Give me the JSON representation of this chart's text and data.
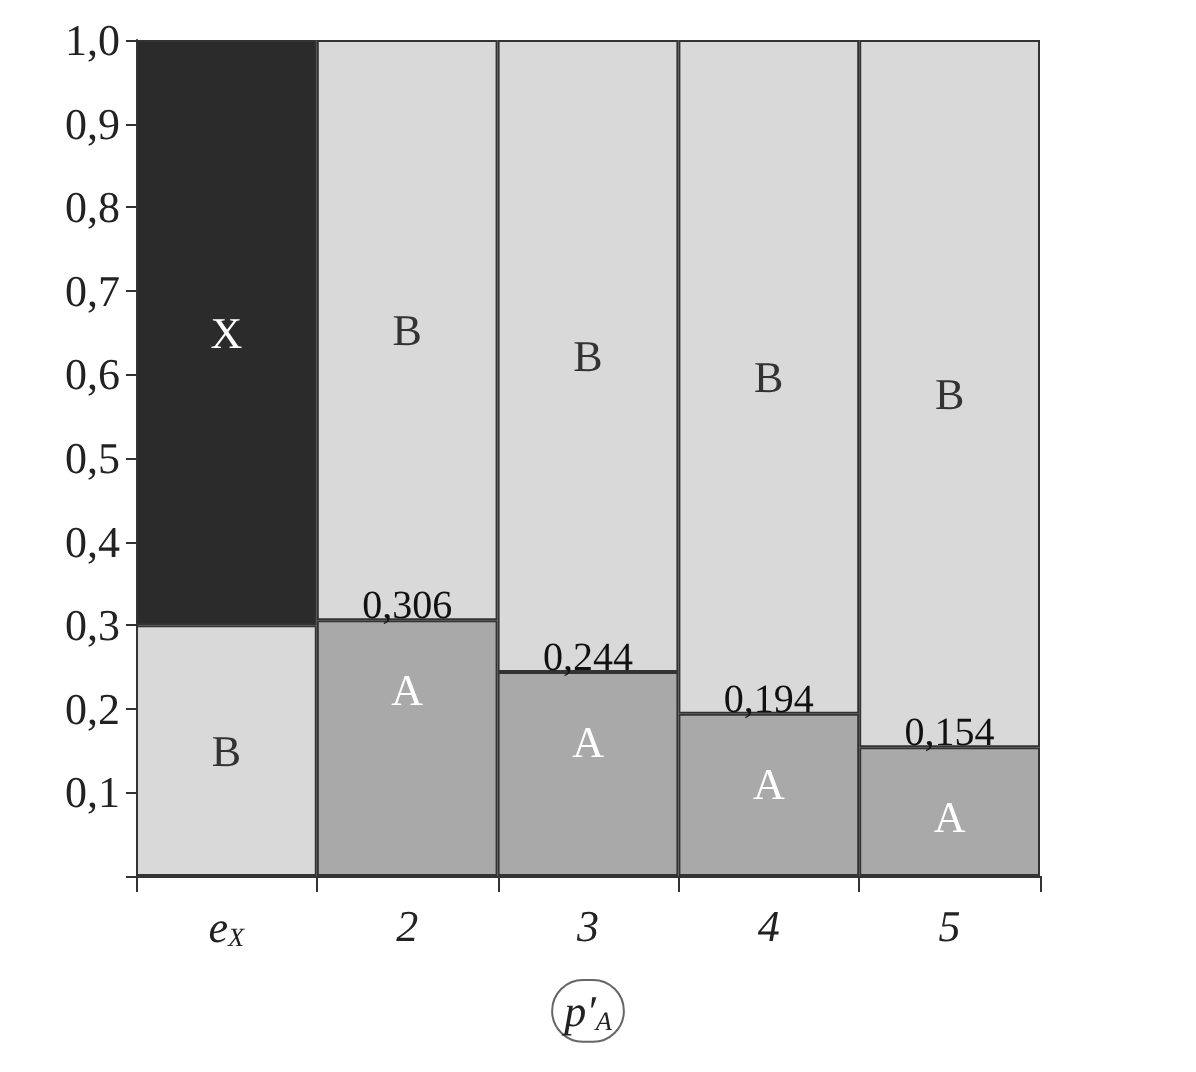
{
  "chart_data": {
    "type": "bar",
    "stacked": true,
    "categories": [
      "e$_{X}$",
      "2",
      "3",
      "4",
      "5"
    ],
    "xlabel": "p′$_{A}$",
    "series": [
      {
        "name": "A",
        "color": "#a9a9a9",
        "values": [
          null,
          0.306,
          0.244,
          0.194,
          0.154
        ],
        "value_labels": [
          null,
          "0,306",
          "0,244",
          "0,194",
          "0,154"
        ]
      },
      {
        "name": "B",
        "color": "#d9d9d9",
        "values": [
          0.3,
          0.694,
          0.756,
          0.806,
          0.846
        ]
      },
      {
        "name": "X",
        "color": "#2b2b2b",
        "values": [
          0.7,
          null,
          null,
          null,
          null
        ]
      }
    ],
    "ylim": [
      0,
      1
    ],
    "yticks": [
      {
        "value": 0,
        "label": null
      },
      {
        "value": 0.1,
        "label": "0,1"
      },
      {
        "value": 0.2,
        "label": "0,2"
      },
      {
        "value": 0.3,
        "label": "0,3"
      },
      {
        "value": 0.4,
        "label": "0,4"
      },
      {
        "value": 0.5,
        "label": "0,5"
      },
      {
        "value": 0.6,
        "label": "0,6"
      },
      {
        "value": 0.7,
        "label": "0,7"
      },
      {
        "value": 0.8,
        "label": "0,8"
      },
      {
        "value": 0.9,
        "label": "0,9"
      },
      {
        "value": 1,
        "label": "1,0"
      }
    ],
    "grid": false,
    "legend": false
  }
}
